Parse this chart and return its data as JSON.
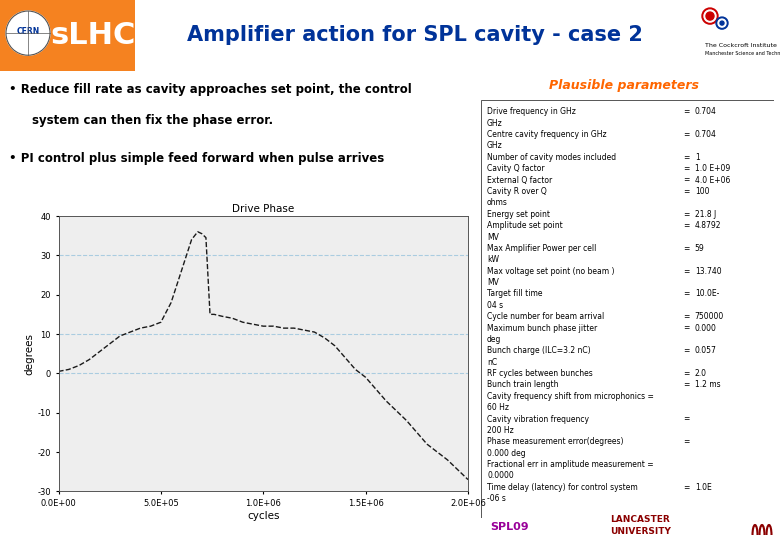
{
  "title": "Amplifier action for SPL cavity - case 2",
  "subtitle": "Plausible parameters",
  "bullet1": "Reduce fill rate as cavity approaches set point, the control\n  system can then fix the phase error.",
  "bullet2": "PI control plus simple feed forward when pulse arrives",
  "plot_title": "Drive Phase",
  "xlabel": "cycles",
  "ylabel": "degrees",
  "xlim": [
    0,
    2000000
  ],
  "ylim": [
    -30,
    40
  ],
  "yticks": [
    -30,
    -20,
    -10,
    0,
    10,
    20,
    30,
    40
  ],
  "xtick_labels": [
    "0.0E+00",
    "5.0E+05",
    "1.0E+06",
    "1.5E+06",
    "2.0E+06"
  ],
  "xtick_vals": [
    0,
    500000,
    1000000,
    1500000,
    2000000
  ],
  "grid_color": "#aacce0",
  "line_color": "#1a1a1a",
  "slide_bg": "#ffffff",
  "slhc_orange": "#f58220",
  "title_color": "#003399",
  "params_title_color": "#ff6600",
  "params": [
    [
      "Drive frequency in GHz",
      "=",
      "0.704"
    ],
    [
      "GHz",
      "",
      ""
    ],
    [
      "Centre cavity frequency in GHz",
      "=",
      "0.704"
    ],
    [
      "GHz",
      "",
      ""
    ],
    [
      "Number of cavity modes included",
      "=",
      "1"
    ],
    [
      "Cavity Q factor",
      "=",
      "1.0 E+09"
    ],
    [
      "External Q factor",
      "=",
      "4.0 E+06"
    ],
    [
      "Cavity R over Q",
      "=",
      "100"
    ],
    [
      "ohms",
      "",
      ""
    ],
    [
      "Energy set point",
      "=",
      "21.8 J"
    ],
    [
      "Amplitude set point",
      "=",
      "4.8792"
    ],
    [
      "MV",
      "",
      ""
    ],
    [
      "Max Amplifier Power per cell",
      "=",
      "59"
    ],
    [
      "kW",
      "",
      ""
    ],
    [
      "Max voltage set point (no beam )",
      "=",
      "13.740"
    ],
    [
      "MV",
      "",
      ""
    ],
    [
      "Target fill time",
      "=",
      "10.0E-"
    ],
    [
      "04 s",
      "",
      ""
    ],
    [
      "Cycle number for beam arrival",
      "=",
      "750000"
    ],
    [
      "Maximum bunch phase jitter",
      "=",
      "0.000"
    ],
    [
      "deg",
      "",
      ""
    ],
    [
      "Bunch charge (ILC=3.2 nC)",
      "=",
      "0.057"
    ],
    [
      "nC",
      "",
      ""
    ],
    [
      "RF cycles between bunches",
      "=",
      "2.0"
    ],
    [
      "Bunch train length",
      "=",
      "1.2 ms"
    ],
    [
      "Cavity frequency shift from microphonics =",
      "",
      ""
    ],
    [
      "60 Hz",
      "",
      ""
    ],
    [
      "Cavity vibration frequency",
      "=",
      ""
    ],
    [
      "200 Hz",
      "",
      ""
    ],
    [
      "Phase measurement error(degrees)",
      "=",
      ""
    ],
    [
      "0.000 deg",
      "",
      ""
    ],
    [
      "Fractional err in amplitude measurement =",
      "",
      ""
    ],
    [
      "0.0000",
      "",
      ""
    ],
    [
      "Time delay (latency) for control system",
      "=",
      "1.0E"
    ],
    [
      "-06 s",
      "",
      ""
    ]
  ],
  "spl09_color": "#990099",
  "curve_x": [
    0,
    50000,
    100000,
    150000,
    200000,
    250000,
    300000,
    350000,
    400000,
    450000,
    500000,
    550000,
    600000,
    650000,
    680000,
    700000,
    720000,
    740000,
    760000,
    800000,
    850000,
    900000,
    950000,
    1000000,
    1050000,
    1100000,
    1150000,
    1200000,
    1250000,
    1300000,
    1350000,
    1400000,
    1450000,
    1500000,
    1550000,
    1600000,
    1650000,
    1700000,
    1750000,
    1800000,
    1900000,
    2000000
  ],
  "curve_y": [
    0.5,
    1.0,
    2.0,
    3.5,
    5.5,
    7.5,
    9.5,
    10.5,
    11.5,
    12.0,
    13.0,
    18.0,
    26.0,
    34.0,
    36.0,
    35.5,
    34.5,
    15.0,
    15.0,
    14.5,
    14.0,
    13.0,
    12.5,
    12.0,
    12.0,
    11.5,
    11.5,
    11.0,
    10.5,
    9.0,
    7.0,
    4.0,
    1.0,
    -1.0,
    -4.0,
    -7.0,
    -9.5,
    -12.0,
    -15.0,
    -18.0,
    -22.0,
    -27.0
  ]
}
